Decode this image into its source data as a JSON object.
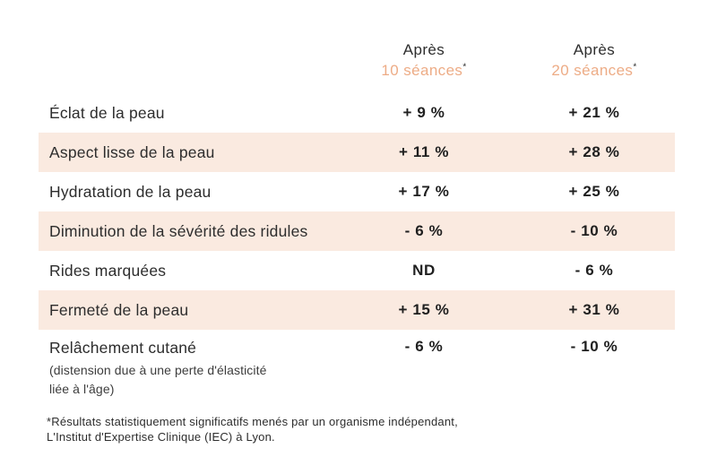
{
  "table": {
    "header": {
      "col1": {
        "top": "Après",
        "bottom": "10 séances",
        "asterisk": "*"
      },
      "col2": {
        "top": "Après",
        "bottom": "20 séances",
        "asterisk": "*"
      }
    },
    "rows": [
      {
        "label": "Éclat de la peau",
        "after10": "+ 9 %",
        "after20": "+ 21 %"
      },
      {
        "label": "Aspect lisse de la peau",
        "after10": "+ 11 %",
        "after20": "+ 28 %"
      },
      {
        "label": "Hydratation de la peau",
        "after10": "+ 17 %",
        "after20": "+ 25 %"
      },
      {
        "label": "Diminution de la sévérité des ridules",
        "after10": "- 6 %",
        "after20": "- 10 %"
      },
      {
        "label": "Rides marquées",
        "after10": "ND",
        "after20": "- 6 %"
      },
      {
        "label": "Fermeté de la peau",
        "after10": "+ 15 %",
        "after20": "+ 31 %"
      },
      {
        "label": "Relâchement cutané",
        "sublabel": "(distension due à  une perte d'élasticité\nliée à l'âge)",
        "after10": "- 6 %",
        "after20": "- 10 %"
      }
    ]
  },
  "footnote": "*Résultats statistiquement significatifs menés par un organisme indépendant,\nL'Institut d'Expertise Clinique (IEC) à Lyon.",
  "colors": {
    "accent_orange": "#EDAC86",
    "row_highlight": "#FAEAE0",
    "text_dark": "#2D2D2D"
  },
  "chart_data": {
    "type": "table",
    "title": "",
    "columns": [
      "",
      "Après 10 séances*",
      "Après 20 séances*"
    ],
    "categories": [
      "Éclat de la peau",
      "Aspect lisse de la peau",
      "Hydratation de la peau",
      "Diminution de la sévérité des ridules",
      "Rides marquées",
      "Fermeté de la peau",
      "Relâchement cutané (distension due à une perte d'élasticité liée à l'âge)"
    ],
    "series": [
      {
        "name": "Après 10 séances",
        "values_pct": [
          9,
          11,
          17,
          -6,
          null,
          15,
          -6
        ],
        "display": [
          "+ 9 %",
          "+ 11 %",
          "+ 17 %",
          "- 6 %",
          "ND",
          "+ 15 %",
          "- 6 %"
        ]
      },
      {
        "name": "Après 20 séances",
        "values_pct": [
          21,
          28,
          25,
          -10,
          -6,
          31,
          -10
        ],
        "display": [
          "+ 21 %",
          "+ 28 %",
          "+ 25 %",
          "- 10 %",
          "- 6 %",
          "+ 31 %",
          "- 10 %"
        ]
      }
    ],
    "highlighted_row_indices": [
      1,
      3,
      5
    ],
    "footnote": "*Résultats statistiquement significatifs menés par un organisme indépendant, L'Institut d'Expertise Clinique (IEC) à Lyon."
  }
}
